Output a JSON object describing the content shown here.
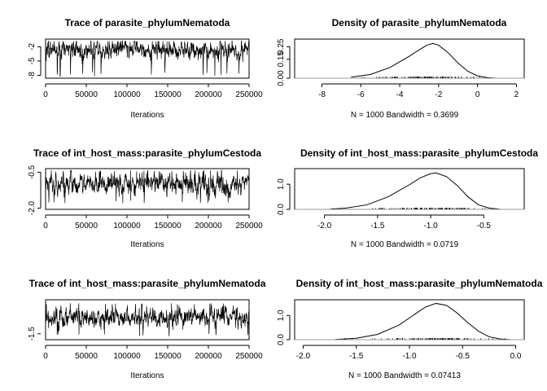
{
  "chart_data": [
    {
      "type": "line",
      "title": "Trace of parasite_phylumNematoda",
      "xlabel": "Iterations",
      "ylabel": "",
      "xlim": [
        0,
        250000
      ],
      "ylim": [
        -8.6,
        -0.4
      ],
      "xticks": [
        "0",
        "50000",
        "100000",
        "150000",
        "200000",
        "250000"
      ],
      "yticks": [
        "-2",
        "-5",
        "-8"
      ],
      "series": [
        {
          "n": 1000,
          "mean": -2.6,
          "sd": 0.95,
          "min": -8.2,
          "max": -0.8
        }
      ],
      "grid": false
    },
    {
      "type": "area",
      "title": "Density of parasite_phylumNematoda",
      "xlabel": "N = 1000   Bandwidth = 0.3699",
      "ylabel": "",
      "xlim": [
        -9.4,
        2.4
      ],
      "ylim": [
        0,
        0.31
      ],
      "xticks": [
        "-8",
        "-6",
        "-4",
        "-2",
        "0",
        "2"
      ],
      "yticks": [
        "0.00",
        "0.15",
        "0.25"
      ],
      "x": [
        -6.5,
        -5.5,
        -4.5,
        -3.5,
        -3.0,
        -2.6,
        -2.3,
        -2.0,
        -1.5,
        -1.0,
        -0.5,
        0.0,
        0.5,
        0.9
      ],
      "y": [
        0.008,
        0.03,
        0.085,
        0.175,
        0.225,
        0.262,
        0.275,
        0.262,
        0.2,
        0.12,
        0.055,
        0.018,
        0.005,
        0.001
      ],
      "grid": false
    },
    {
      "type": "line",
      "title": "Trace of int_host_mass:parasite_phylumCestoda",
      "xlabel": "Iterations",
      "ylabel": "",
      "xlim": [
        0,
        250000
      ],
      "ylim": [
        -2.05,
        -0.35
      ],
      "xticks": [
        "0",
        "50000",
        "100000",
        "150000",
        "200000",
        "250000"
      ],
      "yticks": [
        "-0.5",
        "-2.0"
      ],
      "series": [
        {
          "n": 1000,
          "mean": -1.0,
          "sd": 0.22,
          "min": -1.8,
          "max": -0.42
        }
      ],
      "grid": false
    },
    {
      "type": "area",
      "title": "Density of int_host_mass:parasite_phylumCestoda",
      "xlabel": "N = 1000   Bandwidth = 0.0719",
      "ylabel": "",
      "xlim": [
        -2.28,
        -0.12
      ],
      "ylim": [
        0,
        1.62
      ],
      "xticks": [
        "-2.0",
        "-1.5",
        "-1.0",
        "-0.5"
      ],
      "yticks": [
        "0.0",
        "1.0"
      ],
      "x": [
        -1.95,
        -1.8,
        -1.6,
        -1.4,
        -1.2,
        -1.1,
        -1.0,
        -0.95,
        -0.85,
        -0.75,
        -0.65,
        -0.55,
        -0.45,
        -0.35
      ],
      "y": [
        0.01,
        0.05,
        0.18,
        0.5,
        0.98,
        1.25,
        1.42,
        1.45,
        1.3,
        0.95,
        0.5,
        0.18,
        0.05,
        0.01
      ],
      "grid": false
    },
    {
      "type": "line",
      "title": "Trace of int_host_mass:parasite_phylumNematoda",
      "xlabel": "Iterations",
      "ylabel": "",
      "xlim": [
        0,
        250000
      ],
      "ylim": [
        -1.75,
        -0.05
      ],
      "xticks": [
        "0",
        "50000",
        "100000",
        "150000",
        "200000",
        "250000"
      ],
      "yticks": [
        "-1.5"
      ],
      "series": [
        {
          "n": 1000,
          "mean": -0.8,
          "sd": 0.2,
          "min": -1.6,
          "max": -0.2
        }
      ],
      "grid": false
    },
    {
      "type": "area",
      "title": "Density of int_host_mass:parasite_phylumNematoda",
      "xlabel": "N = 1000   Bandwidth = 0.07413",
      "ylabel": "",
      "xlim": [
        -2.08,
        0.08
      ],
      "ylim": [
        0,
        1.65
      ],
      "xticks": [
        "-2.0",
        "-1.5",
        "-1.0",
        "-0.5",
        "0.0"
      ],
      "yticks": [
        "0.0",
        "1.0"
      ],
      "x": [
        -1.7,
        -1.5,
        -1.3,
        -1.1,
        -0.95,
        -0.85,
        -0.75,
        -0.65,
        -0.55,
        -0.45,
        -0.35,
        -0.25,
        -0.15,
        -0.05
      ],
      "y": [
        0.01,
        0.06,
        0.22,
        0.6,
        1.05,
        1.35,
        1.5,
        1.42,
        1.1,
        0.7,
        0.35,
        0.12,
        0.03,
        0.005
      ],
      "grid": false
    }
  ]
}
